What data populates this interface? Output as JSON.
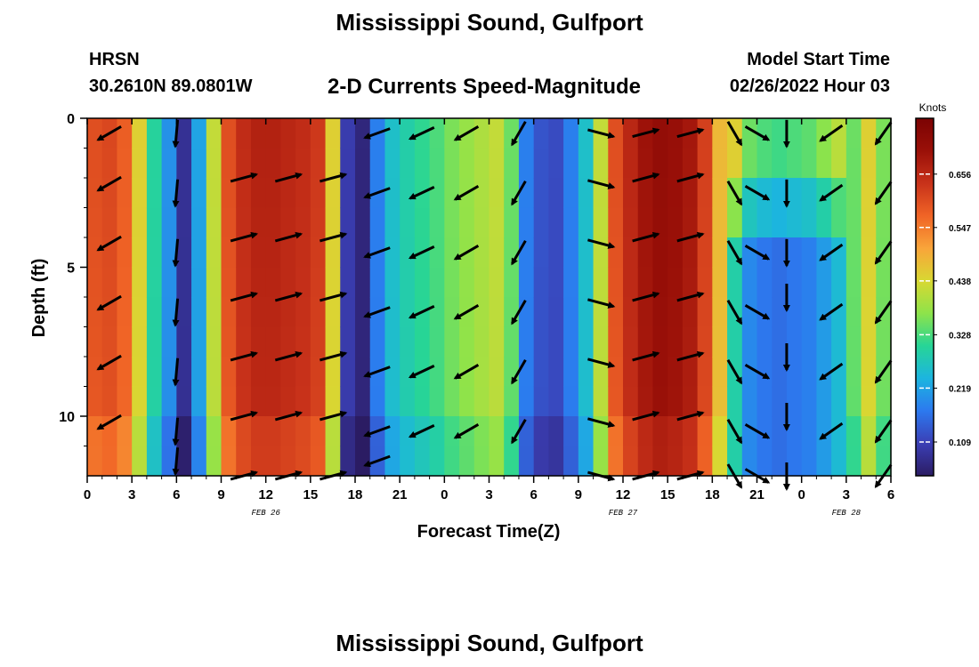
{
  "header": {
    "title": "Mississippi Sound, Gulfport",
    "station": "HRSN",
    "coords": "30.2610N  89.0801W",
    "subtitle": "2-D Currents Speed-Magnitude",
    "model_start_label": "Model Start Time",
    "model_start_value": "02/26/2022 Hour 03"
  },
  "footer": {
    "title": "Mississippi Sound, Gulfport"
  },
  "chart_data": {
    "type": "heatmap",
    "xlabel": "Forecast Time(Z)",
    "ylabel": "Depth (ft)",
    "colorbar_label": "Knots",
    "x_ticks": [
      "0",
      "3",
      "6",
      "9",
      "12",
      "15",
      "18",
      "21",
      "0",
      "3",
      "6",
      "9",
      "12",
      "15",
      "18",
      "21",
      "0",
      "3",
      "6"
    ],
    "date_labels": [
      {
        "text": "FEB 26",
        "hour_index": 12
      },
      {
        "text": "FEB 27",
        "hour_index": 36
      },
      {
        "text": "FEB 28",
        "hour_index": 51
      }
    ],
    "y_ticks": [
      "0",
      "5",
      "10"
    ],
    "y_range_ft": [
      0,
      12
    ],
    "x_range_hours": [
      0,
      54
    ],
    "colorbar_ticks": [
      "0.656",
      "0.547",
      "0.438",
      "0.328",
      "0.219",
      "0.109"
    ],
    "colorbar_tick_values": [
      0.656,
      0.547,
      0.438,
      0.328,
      0.219,
      0.109
    ],
    "colorbar_range": [
      0.04,
      0.77
    ],
    "colorscale": [
      "#2b1c63",
      "#3b3fb5",
      "#2c79ef",
      "#1cb5df",
      "#27d596",
      "#8ee34a",
      "#d8d832",
      "#f9a53a",
      "#f06426",
      "#c8321a",
      "#9a1008",
      "#7b0303"
    ],
    "speed_profile_by_hour": [
      0.6,
      0.61,
      0.58,
      0.45,
      0.3,
      0.2,
      0.08,
      0.22,
      0.42,
      0.6,
      0.65,
      0.67,
      0.67,
      0.66,
      0.65,
      0.63,
      0.45,
      0.1,
      0.06,
      0.18,
      0.26,
      0.29,
      0.31,
      0.33,
      0.36,
      0.38,
      0.4,
      0.42,
      0.35,
      0.18,
      0.13,
      0.12,
      0.18,
      0.26,
      0.42,
      0.6,
      0.66,
      0.7,
      0.72,
      0.71,
      0.69,
      0.62,
      0.48,
      0.3,
      0.2,
      0.18,
      0.17,
      0.18,
      0.19,
      0.22,
      0.26,
      0.35,
      0.45,
      0.36,
      0.3
    ],
    "arrows": [
      {
        "hour": 1.5,
        "depths": [
          0.5,
          2.2,
          4.2,
          6.2,
          8.2,
          10.2
        ],
        "dir_deg": 210
      },
      {
        "hour": 6,
        "depths": [
          0.5,
          2.5,
          4.5,
          6.5,
          8.5,
          10.5,
          11.5
        ],
        "dir_deg": 265
      },
      {
        "hour": 10.5,
        "depths": [
          2,
          4,
          6,
          8,
          10,
          12
        ],
        "dir_deg": 15
      },
      {
        "hour": 13.5,
        "depths": [
          2,
          4,
          6,
          8,
          10,
          12
        ],
        "dir_deg": 15
      },
      {
        "hour": 16.5,
        "depths": [
          2,
          4,
          6,
          8,
          10,
          12
        ],
        "dir_deg": 15
      },
      {
        "hour": 19.5,
        "depths": [
          0.5,
          2.5,
          4.5,
          6.5,
          8.5,
          10.5,
          11.5
        ],
        "dir_deg": 200
      },
      {
        "hour": 22.5,
        "depths": [
          0.5,
          2.5,
          4.5,
          6.5,
          8.5,
          10.5
        ],
        "dir_deg": 205
      },
      {
        "hour": 25.5,
        "depths": [
          0.5,
          2.5,
          4.5,
          6.5,
          8.5,
          10.5
        ],
        "dir_deg": 210
      },
      {
        "hour": 29,
        "depths": [
          0.5,
          2.5,
          4.5,
          6.5,
          8.5,
          10.5
        ],
        "dir_deg": 240
      },
      {
        "hour": 34.5,
        "depths": [
          0.5,
          2.2,
          4.2,
          6.2,
          8.2,
          10.2,
          12
        ],
        "dir_deg": 345
      },
      {
        "hour": 37.5,
        "depths": [
          0.5,
          2,
          4,
          6,
          8,
          10,
          12
        ],
        "dir_deg": 15
      },
      {
        "hour": 40.5,
        "depths": [
          0.5,
          2,
          4,
          6,
          8,
          10,
          12
        ],
        "dir_deg": 15
      },
      {
        "hour": 43.5,
        "depths": [
          0.5,
          2.5,
          4.5,
          6.5,
          8.5,
          10.5,
          12
        ],
        "dir_deg": 300
      },
      {
        "hour": 45,
        "depths": [
          0.5,
          2.5,
          4.5,
          6.5,
          8.5,
          10.5,
          12
        ],
        "dir_deg": 330
      },
      {
        "hour": 47,
        "depths": [
          0.5,
          2.5,
          4.5,
          6,
          8,
          10,
          12
        ],
        "dir_deg": 270
      },
      {
        "hour": 50,
        "depths": [
          0.5,
          2.5,
          4.5,
          6.5,
          8.5,
          10.5
        ],
        "dir_deg": 215
      },
      {
        "hour": 53.5,
        "depths": [
          0.5,
          2.5,
          4.5,
          6.5,
          8.5,
          10.5,
          12
        ],
        "dir_deg": 235
      }
    ]
  }
}
